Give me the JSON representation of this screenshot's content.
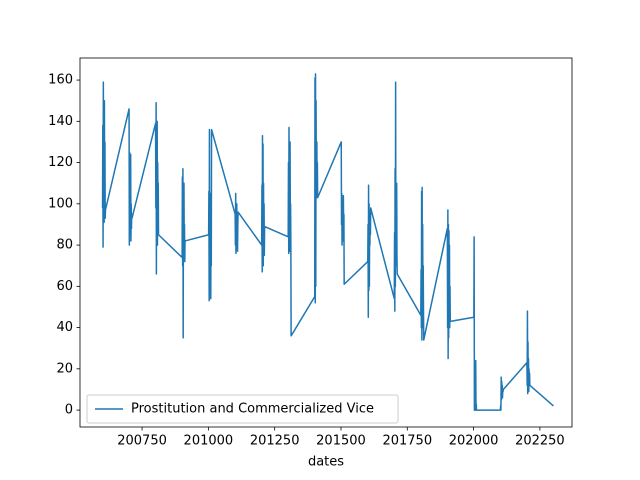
{
  "chart_data": {
    "type": "line",
    "x": [
      200601,
      200602,
      200603,
      200604,
      200605,
      200606,
      200607,
      200608,
      200609,
      200610,
      200611,
      200612,
      200701,
      200702,
      200703,
      200704,
      200705,
      200706,
      200707,
      200708,
      200709,
      200710,
      200711,
      200712,
      200801,
      200802,
      200803,
      200804,
      200805,
      200806,
      200807,
      200808,
      200809,
      200810,
      200811,
      200812,
      200901,
      200902,
      200903,
      200904,
      200905,
      200906,
      200907,
      200908,
      200909,
      200910,
      200911,
      200912,
      201001,
      201002,
      201003,
      201004,
      201005,
      201006,
      201007,
      201008,
      201009,
      201010,
      201011,
      201012,
      201101,
      201102,
      201103,
      201104,
      201105,
      201106,
      201107,
      201108,
      201109,
      201110,
      201111,
      201112,
      201201,
      201202,
      201203,
      201204,
      201205,
      201206,
      201207,
      201208,
      201209,
      201210,
      201211,
      201212,
      201301,
      201302,
      201303,
      201304,
      201305,
      201306,
      201307,
      201308,
      201309,
      201310,
      201311,
      201312,
      201401,
      201402,
      201403,
      201404,
      201405,
      201406,
      201407,
      201408,
      201409,
      201410,
      201411,
      201412,
      201501,
      201502,
      201503,
      201504,
      201505,
      201506,
      201507,
      201508,
      201509,
      201510,
      201511,
      201512,
      201601,
      201602,
      201603,
      201604,
      201605,
      201606,
      201607,
      201608,
      201609,
      201610,
      201611,
      201612,
      201701,
      201702,
      201703,
      201704,
      201705,
      201706,
      201707,
      201708,
      201709,
      201710,
      201711,
      201712,
      201801,
      201802,
      201803,
      201804,
      201805,
      201806,
      201807,
      201808,
      201809,
      201810,
      201811,
      201812,
      201901,
      201902,
      201903,
      201904,
      201905,
      201906,
      201907,
      201908,
      201909,
      201910,
      201911,
      201912,
      202001,
      202002,
      202003,
      202004,
      202005,
      202006,
      202007,
      202008,
      202009,
      202010,
      202011,
      202012,
      202101,
      202102,
      202103,
      202104,
      202105,
      202106,
      202107,
      202108,
      202109,
      202110,
      202111,
      202112,
      202201,
      202202,
      202203,
      202204,
      202205,
      202206,
      202207,
      202208,
      202209,
      202210,
      202211,
      202212,
      202301
    ],
    "series": [
      {
        "name": "Prostitution and Commercialized Vice",
        "color": "#1f77b4",
        "values": [
          98,
          138,
          79,
          159,
          95,
          120,
          91,
          150,
          100,
          130,
          93,
          97,
          146,
          80,
          125,
          85,
          110,
          90,
          124,
          82,
          100,
          88,
          95,
          93,
          139,
          98,
          149,
          66,
          135,
          100,
          140,
          80,
          120,
          99,
          110,
          85,
          74,
          113,
          70,
          117,
          35,
          100,
          75,
          110,
          80,
          90,
          72,
          82,
          85,
          106,
          53,
          136,
          55,
          100,
          60,
          105,
          54,
          90,
          70,
          136,
          95,
          80,
          105,
          76,
          99,
          78,
          100,
          80,
          95,
          77,
          90,
          96,
          80,
          109,
          67,
          133,
          85,
          129,
          70,
          110,
          80,
          100,
          75,
          89,
          84,
          120,
          76,
          137,
          80,
          110,
          77,
          130,
          90,
          100,
          80,
          36,
          55,
          161,
          52,
          163,
          60,
          150,
          110,
          103,
          130,
          105,
          120,
          103,
          130,
          90,
          105,
          80,
          100,
          85,
          93,
          82,
          104,
          88,
          95,
          61,
          72,
          90,
          45,
          109,
          58,
          100,
          60,
          90,
          80,
          95,
          85,
          98,
          54,
          86,
          48,
          117,
          60,
          159,
          70,
          100,
          80,
          110,
          75,
          66,
          46,
          68,
          40,
          106,
          34,
          108,
          45,
          90,
          40,
          70,
          50,
          34,
          88,
          40,
          97,
          25,
          90,
          35,
          87,
          45,
          80,
          40,
          60,
          43,
          45,
          84,
          0,
          20,
          0,
          5,
          0,
          24,
          0,
          3,
          0,
          0,
          0,
          2,
          0,
          16,
          5,
          14,
          8,
          12,
          6,
          10,
          9,
          10,
          23,
          12,
          48,
          8,
          33,
          10,
          25,
          9,
          20,
          14,
          18,
          12,
          2
        ]
      }
    ],
    "xlabel": "dates",
    "xlim": [
      200516,
      202371
    ],
    "ylim": [
      -8.2,
      170.7
    ],
    "xticks": [
      200750,
      201000,
      201250,
      201500,
      201750,
      202000,
      202250
    ],
    "yticks": [
      0,
      20,
      40,
      60,
      80,
      100,
      120,
      140,
      160
    ],
    "legend": "lower left"
  }
}
